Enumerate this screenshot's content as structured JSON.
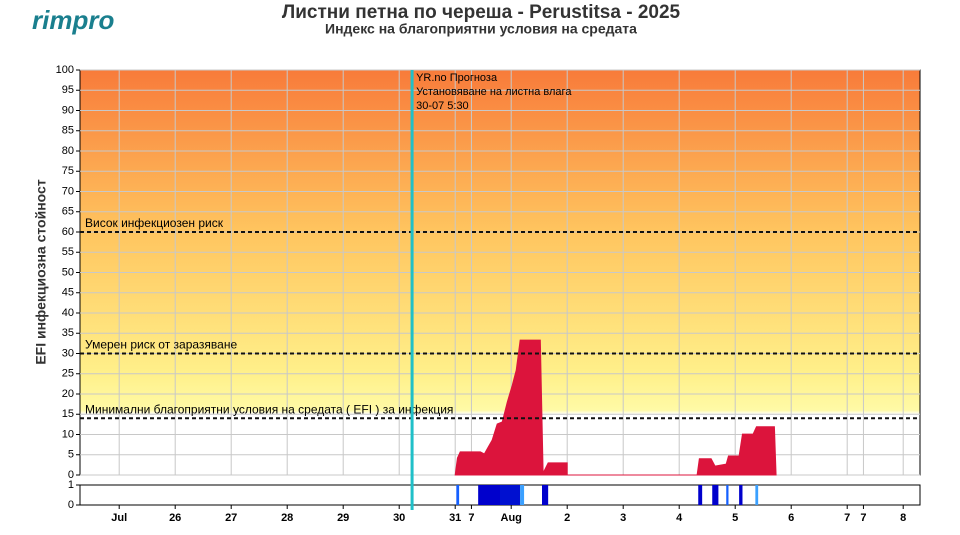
{
  "logo": "rimpro",
  "chart_data": {
    "type": "area",
    "title": "Листни петна по череша - Perustitsa - 2025",
    "subtitle": "Индекс на благоприятни условия на средата",
    "y_label": "EFI инфекциозна стойност",
    "xlim": [
      -0.7,
      14.3
    ],
    "ylim": [
      0,
      100
    ],
    "yticks": [
      0,
      5,
      10,
      15,
      20,
      25,
      30,
      35,
      40,
      45,
      50,
      55,
      60,
      65,
      70,
      75,
      80,
      85,
      90,
      95,
      100
    ],
    "xticks": [
      {
        "value": 0,
        "label": "Jul"
      },
      {
        "value": 1,
        "label": "26"
      },
      {
        "value": 2,
        "label": "27"
      },
      {
        "value": 3,
        "label": "28"
      },
      {
        "value": 4,
        "label": "29"
      },
      {
        "value": 5,
        "label": "30"
      },
      {
        "value": 6,
        "label": "31"
      },
      {
        "value": 6.29,
        "label": "7"
      },
      {
        "value": 7,
        "label": "Aug"
      },
      {
        "value": 8,
        "label": "2"
      },
      {
        "value": 9,
        "label": "3"
      },
      {
        "value": 10,
        "label": "4"
      },
      {
        "value": 11,
        "label": "5"
      },
      {
        "value": 12,
        "label": "6"
      },
      {
        "value": 13,
        "label": "7"
      },
      {
        "value": 13.29,
        "label": "7"
      },
      {
        "value": 14,
        "label": "8"
      }
    ],
    "grid": true,
    "series": [
      {
        "color": "#dc143c",
        "x": [
          6.0,
          6.04,
          6.09,
          6.45,
          6.52,
          6.59,
          6.66,
          6.75,
          6.84,
          6.93,
          7.02,
          7.09,
          7.16,
          7.52,
          7.57,
          7.66,
          8.0,
          8.0,
          10.32,
          10.36,
          10.57,
          10.64,
          10.84,
          10.88,
          11.07,
          11.13,
          11.32,
          11.38,
          11.7,
          11.73
        ],
        "values": [
          0,
          4.2,
          5.7,
          5.7,
          5.2,
          6.9,
          8.6,
          12.6,
          13.1,
          18,
          22.2,
          25.9,
          33.3,
          33.3,
          0.5,
          3,
          3,
          0,
          0,
          4,
          4,
          2.2,
          2.7,
          4.7,
          4.7,
          10.1,
          10.1,
          11.9,
          11.9,
          0
        ]
      }
    ],
    "thresholds": [
      {
        "value": 60,
        "label": "Висок инфекциозен риск"
      },
      {
        "value": 30,
        "label": "Умерен риск от заразяване"
      },
      {
        "value": 14,
        "label": "Минимални благоприятни условия на средата ( EFI ) за инфекция"
      }
    ],
    "forecast": {
      "x": 5.23,
      "color": "#20c0c8",
      "lines": [
        "YR.no Прогноза",
        "Установяване на листна влага",
        "30-07 5:30"
      ]
    },
    "wetness": {
      "ylim": [
        0,
        1
      ],
      "yticks": [
        0,
        1
      ],
      "bars": [
        {
          "x0": 6.02,
          "x1": 6.07,
          "value": 1,
          "color": "#1560ff"
        },
        {
          "x0": 6.41,
          "x1": 6.8,
          "value": 1,
          "color": "#0000cc"
        },
        {
          "x0": 6.8,
          "x1": 7.16,
          "value": 1,
          "color": "#0010d0"
        },
        {
          "x0": 7.16,
          "x1": 7.23,
          "value": 1,
          "color": "#3aa0ff"
        },
        {
          "x0": 7.55,
          "x1": 7.66,
          "value": 1,
          "color": "#0000cc"
        },
        {
          "x0": 10.34,
          "x1": 10.41,
          "value": 1,
          "color": "#0000cc"
        },
        {
          "x0": 10.59,
          "x1": 10.7,
          "value": 1,
          "color": "#0000cc"
        },
        {
          "x0": 10.84,
          "x1": 10.88,
          "value": 1,
          "color": "#1560ff"
        },
        {
          "x0": 11.07,
          "x1": 11.13,
          "value": 1,
          "color": "#0000cc"
        },
        {
          "x0": 11.36,
          "x1": 11.41,
          "value": 1,
          "color": "#3aa0ff"
        }
      ]
    }
  }
}
